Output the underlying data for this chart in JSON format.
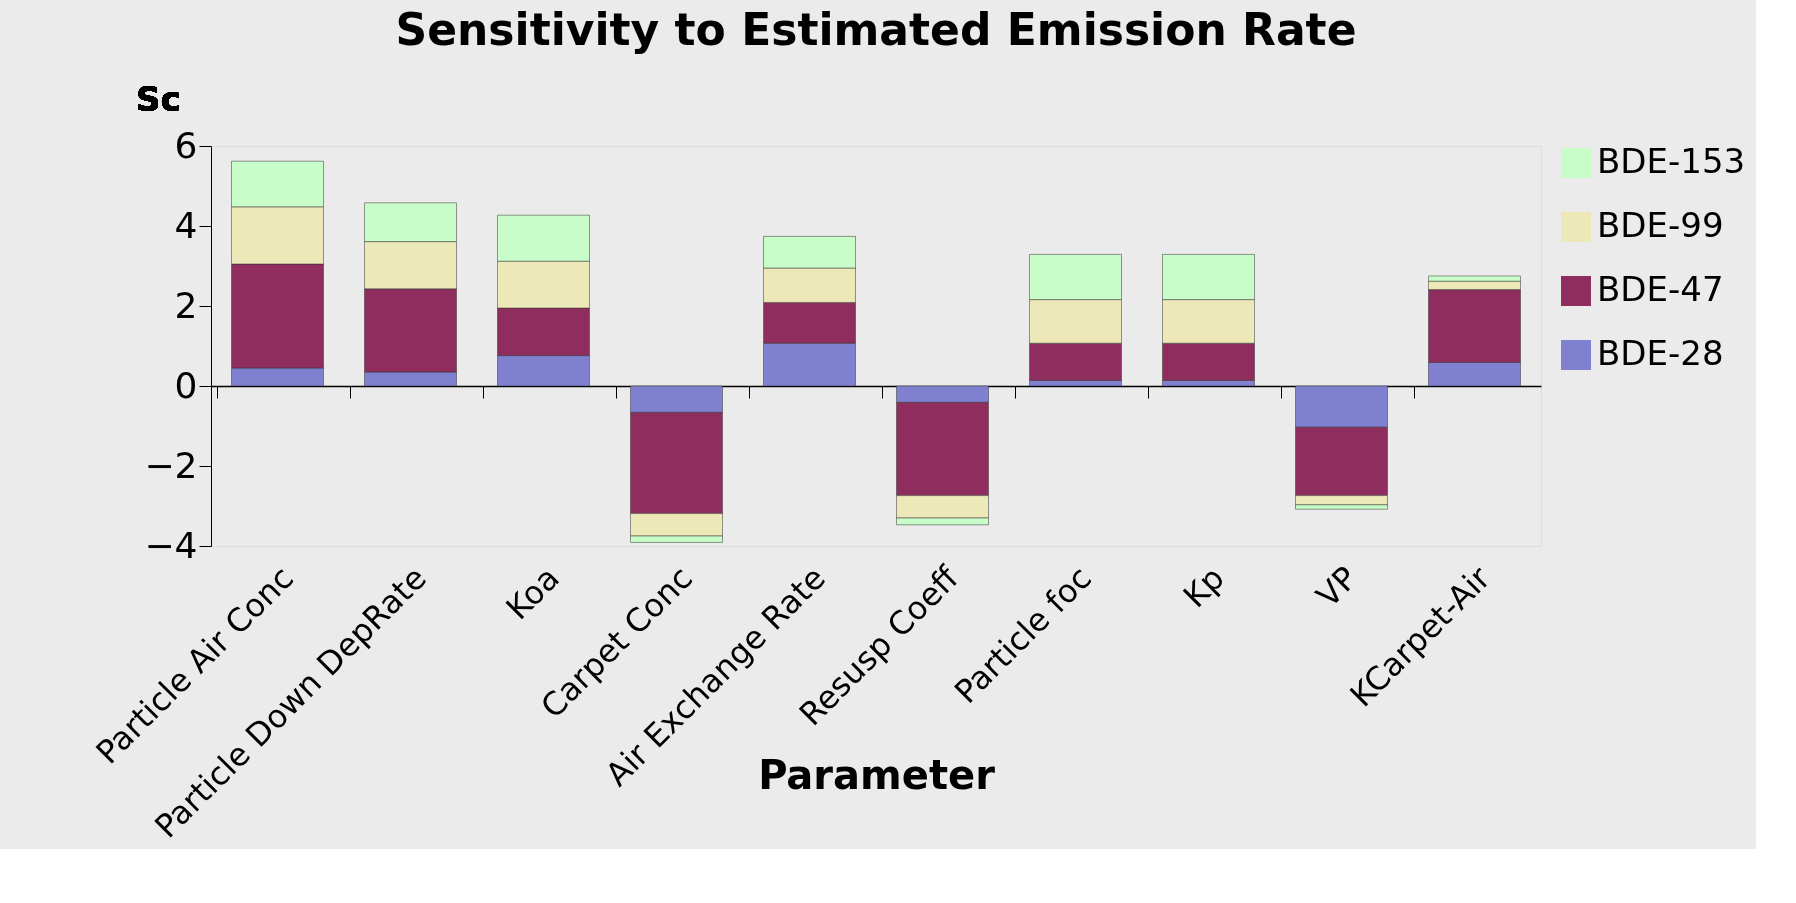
{
  "chart_data": {
    "type": "bar",
    "title": "Sensitivity to Estimated Emission Rate",
    "ylabel": "Sc",
    "xlabel": "Parameter",
    "categories": [
      "Particle Air Conc",
      "Particle Down DepRate",
      "Koa",
      "Carpet Conc",
      "Air Exchange Rate",
      "Resusp Coeff",
      "Particle foc",
      "Kp",
      "VP",
      "KCarpet-Air"
    ],
    "stacked": true,
    "ylim": [
      -4,
      6
    ],
    "yticks": [
      -4,
      -2,
      0,
      2,
      4,
      6
    ],
    "legend": "right",
    "series": [
      {
        "name": "BDE-28",
        "color": "#8080d0",
        "values": [
          0.45,
          0.35,
          0.76,
          -0.66,
          1.07,
          -0.41,
          0.14,
          0.14,
          -1.03,
          0.59
        ]
      },
      {
        "name": "BDE-47",
        "color": "#8f2e5e",
        "values": [
          2.6,
          2.08,
          1.19,
          -2.53,
          1.02,
          -2.33,
          0.93,
          0.93,
          -1.71,
          1.82
        ]
      },
      {
        "name": "BDE-99",
        "color": "#ece8b8",
        "values": [
          1.43,
          1.18,
          1.17,
          -0.56,
          0.86,
          -0.56,
          1.09,
          1.09,
          -0.23,
          0.21
        ]
      },
      {
        "name": "BDE-153",
        "color": "#c8fcc8",
        "values": [
          1.14,
          0.97,
          1.15,
          -0.16,
          0.79,
          -0.17,
          1.13,
          1.13,
          -0.11,
          0.13
        ]
      }
    ]
  }
}
